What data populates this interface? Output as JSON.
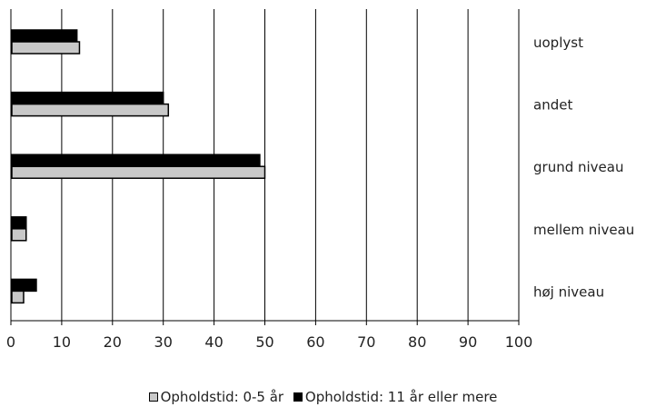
{
  "chart_data": {
    "type": "bar",
    "orientation": "horizontal",
    "categories": [
      "uoplyst",
      "andet",
      "grund niveau",
      "mellem niveau",
      "høj niveau"
    ],
    "series": [
      {
        "name": "Opholdstid: 11 år eller mere",
        "color": "#000000",
        "values": [
          13,
          30,
          49,
          3,
          5
        ]
      },
      {
        "name": "Opholdstid: 0-5 år",
        "color": "#c8c8c8",
        "values": [
          13.5,
          31,
          50,
          3,
          2.5
        ]
      }
    ],
    "xlim": [
      0,
      100
    ],
    "xticks": [
      0,
      10,
      20,
      30,
      40,
      50,
      60,
      70,
      80,
      90,
      100
    ],
    "grid": "vertical",
    "legend_position": "bottom",
    "legend": [
      {
        "name": "Opholdstid: 0-5 år",
        "color": "#c8c8c8"
      },
      {
        "name": "Opholdstid: 11 år eller mere",
        "color": "#000000"
      }
    ]
  }
}
